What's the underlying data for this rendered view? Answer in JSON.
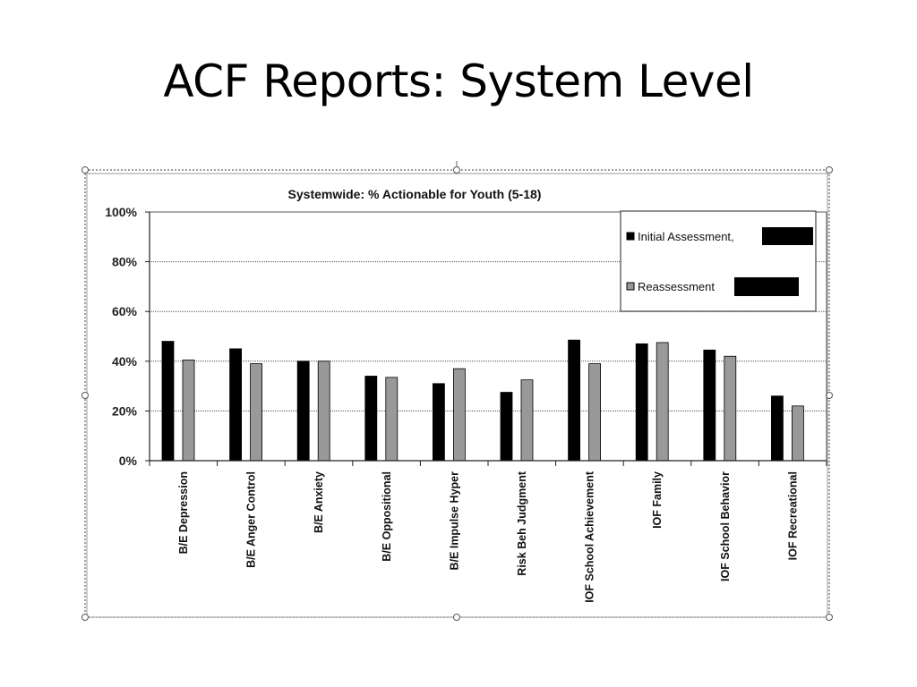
{
  "slide": {
    "title": "ACF Reports: System Level"
  },
  "colors": {
    "initial": "#000000",
    "reassessment": "#999999",
    "grid": "#555555",
    "redaction": "#000000"
  },
  "chart_data": {
    "type": "bar",
    "title": "Systemwide: % Actionable for Youth (5-18)",
    "xlabel": "",
    "ylabel": "",
    "ylim": [
      0,
      100
    ],
    "yticks": [
      "0%",
      "20%",
      "40%",
      "60%",
      "80%",
      "100%"
    ],
    "ytick_values": [
      0,
      20,
      40,
      60,
      80,
      100
    ],
    "grid": true,
    "legend_position": "top-right",
    "categories": [
      "B/E Depression",
      "B/E Anger Control",
      "B/E Anxiety",
      "B/E Oppositional",
      "B/E Impulse Hyper",
      "Risk Beh Judgment",
      "IOF School Achievement",
      "IOF Family",
      "IOF School Behavior",
      "IOF Recreational"
    ],
    "series": [
      {
        "name": "Initial Assessment,",
        "values": [
          48,
          45,
          40,
          34,
          31,
          27.5,
          48.5,
          47,
          44.5,
          26
        ]
      },
      {
        "name": "Reassessment",
        "values": [
          40.5,
          39,
          40,
          33.5,
          37,
          32.5,
          39,
          47.5,
          42,
          22
        ]
      }
    ]
  }
}
